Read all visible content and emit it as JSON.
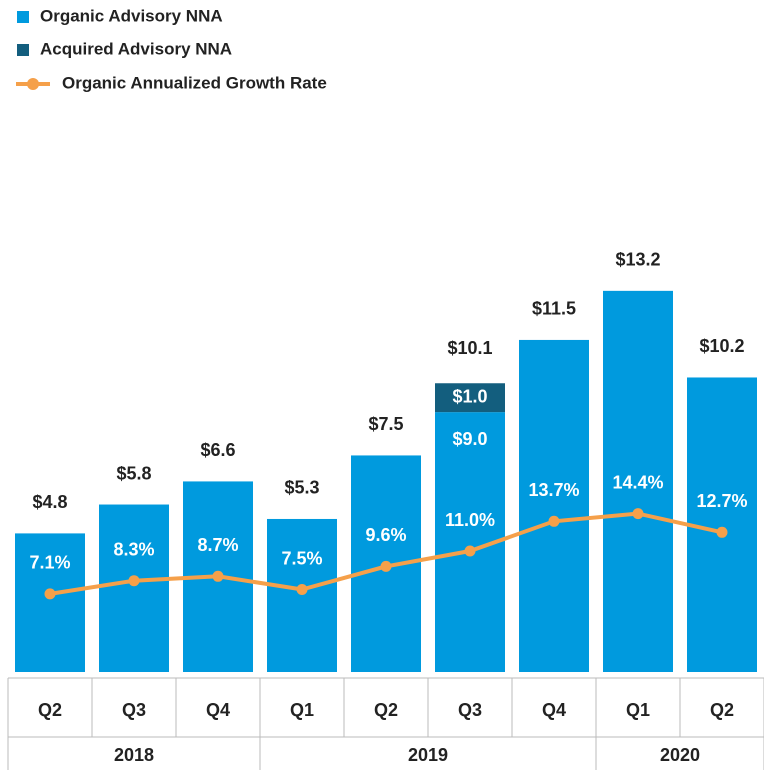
{
  "chart_data": {
    "type": "bar",
    "categories": [
      "Q2",
      "Q3",
      "Q4",
      "Q1",
      "Q2",
      "Q3",
      "Q4",
      "Q1",
      "Q2"
    ],
    "groups": [
      {
        "label": "2018",
        "span": 3
      },
      {
        "label": "2019",
        "span": 4
      },
      {
        "label": "2020",
        "span": 2
      }
    ],
    "series": [
      {
        "name": "Organic Advisory NNA",
        "color": "#009ade",
        "type": "bar",
        "values": [
          4.8,
          5.8,
          6.6,
          5.3,
          7.5,
          9.0,
          11.5,
          13.2,
          10.2
        ],
        "value_labels": [
          "$4.8",
          "$5.8",
          "$6.6",
          "$5.3",
          "$7.5",
          "$9.0",
          "$11.5",
          "$13.2",
          "$10.2"
        ]
      },
      {
        "name": "Acquired Advisory NNA",
        "color": "#135e7e",
        "type": "bar",
        "values": [
          null,
          null,
          null,
          null,
          null,
          1.0,
          null,
          null,
          null
        ],
        "value_labels": [
          null,
          null,
          null,
          null,
          null,
          "$1.0",
          null,
          null,
          null
        ]
      },
      {
        "name": "Organic Annualized Growth Rate",
        "color": "#f5a04a",
        "type": "line",
        "axis": "y2",
        "values": [
          7.1,
          8.3,
          8.7,
          7.5,
          9.6,
          11.0,
          13.7,
          14.4,
          12.7
        ],
        "value_labels": [
          "7.1%",
          "8.3%",
          "8.7%",
          "7.5%",
          "9.6%",
          "11.0%",
          "13.7%",
          "14.4%",
          "12.7%"
        ]
      }
    ],
    "total_labels": [
      null,
      null,
      null,
      null,
      null,
      "$10.1",
      null,
      null,
      null
    ],
    "ylim": [
      0,
      16
    ],
    "y2lim": [
      0,
      42
    ],
    "grid": false
  }
}
